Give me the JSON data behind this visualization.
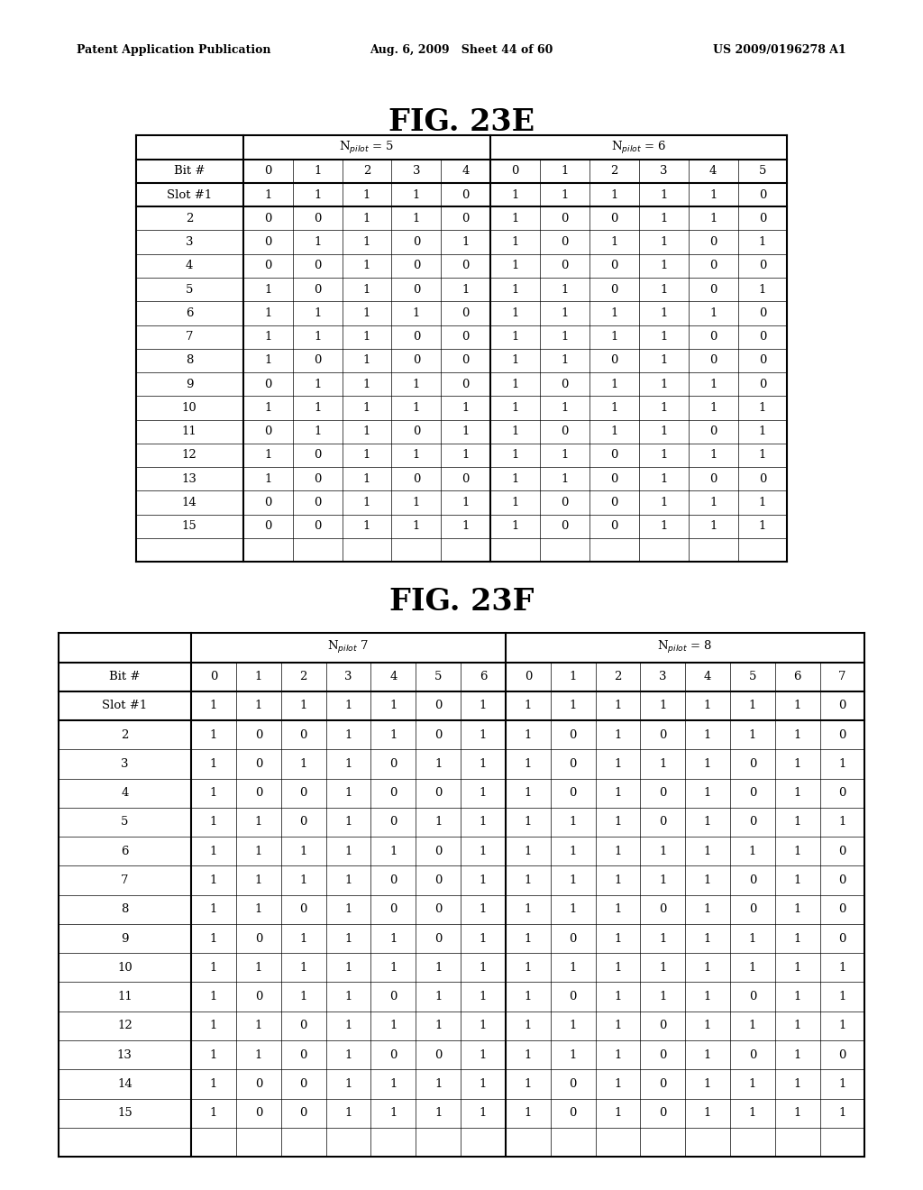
{
  "header_text_left": "Patent Application Publication",
  "header_text_mid": "Aug. 6, 2009   Sheet 44 of 60",
  "header_text_right": "US 2009/0196278 A1",
  "fig23e_title": "FIG. 23E",
  "fig23f_title": "FIG. 23F",
  "fig23e": {
    "npilot5_label": "Nₚᴵₗₒₜ = 5",
    "npilot6_label": "Nₚᴵₗₒₜ = 6",
    "npilot5_bits": [
      0,
      1,
      2,
      3,
      4
    ],
    "npilot6_bits": [
      0,
      1,
      2,
      3,
      4,
      5
    ],
    "npilot5_data": [
      [
        1,
        1,
        1,
        1,
        0
      ],
      [
        0,
        0,
        1,
        1,
        0
      ],
      [
        0,
        1,
        1,
        0,
        1
      ],
      [
        0,
        0,
        1,
        0,
        0
      ],
      [
        1,
        0,
        1,
        0,
        1
      ],
      [
        1,
        1,
        1,
        1,
        0
      ],
      [
        1,
        1,
        1,
        0,
        0
      ],
      [
        1,
        0,
        1,
        0,
        0
      ],
      [
        0,
        1,
        1,
        1,
        0
      ],
      [
        1,
        1,
        1,
        1,
        1
      ],
      [
        0,
        1,
        1,
        0,
        1
      ],
      [
        1,
        0,
        1,
        1,
        1
      ],
      [
        1,
        0,
        1,
        0,
        0
      ],
      [
        0,
        0,
        1,
        1,
        1
      ],
      [
        0,
        0,
        1,
        1,
        1
      ]
    ],
    "npilot6_data": [
      [
        1,
        1,
        1,
        1,
        1,
        0
      ],
      [
        1,
        0,
        0,
        1,
        1,
        0
      ],
      [
        1,
        0,
        1,
        1,
        0,
        1
      ],
      [
        1,
        0,
        0,
        1,
        0,
        0
      ],
      [
        1,
        1,
        0,
        1,
        0,
        1
      ],
      [
        1,
        1,
        1,
        1,
        1,
        0
      ],
      [
        1,
        1,
        1,
        1,
        0,
        0
      ],
      [
        1,
        1,
        0,
        1,
        0,
        0
      ],
      [
        1,
        0,
        1,
        1,
        1,
        0
      ],
      [
        1,
        1,
        1,
        1,
        1,
        1
      ],
      [
        1,
        0,
        1,
        1,
        0,
        1
      ],
      [
        1,
        1,
        0,
        1,
        1,
        1
      ],
      [
        1,
        1,
        0,
        1,
        0,
        0
      ],
      [
        1,
        0,
        0,
        1,
        1,
        1
      ],
      [
        1,
        0,
        0,
        1,
        1,
        1
      ]
    ]
  },
  "fig23f": {
    "npilot7_label": "Nₚᴵₗₒₜ 7",
    "npilot8_label": "Nₚᴵₗₒₜ = 8",
    "npilot7_bits": [
      0,
      1,
      2,
      3,
      4,
      5,
      6
    ],
    "npilot8_bits": [
      0,
      1,
      2,
      3,
      4,
      5,
      6,
      7
    ],
    "npilot7_data": [
      [
        1,
        1,
        1,
        1,
        1,
        0,
        1
      ],
      [
        1,
        0,
        0,
        1,
        1,
        0,
        1
      ],
      [
        1,
        0,
        1,
        1,
        0,
        1,
        1
      ],
      [
        1,
        0,
        0,
        1,
        0,
        0,
        1
      ],
      [
        1,
        1,
        0,
        1,
        0,
        1,
        1
      ],
      [
        1,
        1,
        1,
        1,
        1,
        0,
        1
      ],
      [
        1,
        1,
        1,
        1,
        0,
        0,
        1
      ],
      [
        1,
        1,
        0,
        1,
        0,
        0,
        1
      ],
      [
        1,
        0,
        1,
        1,
        1,
        0,
        1
      ],
      [
        1,
        1,
        1,
        1,
        1,
        1,
        1
      ],
      [
        1,
        0,
        1,
        1,
        0,
        1,
        1
      ],
      [
        1,
        1,
        0,
        1,
        1,
        1,
        1
      ],
      [
        1,
        1,
        0,
        1,
        0,
        0,
        1
      ],
      [
        1,
        0,
        0,
        1,
        1,
        1,
        1
      ],
      [
        1,
        0,
        0,
        1,
        1,
        1,
        1
      ]
    ],
    "npilot8_data": [
      [
        1,
        1,
        1,
        1,
        1,
        1,
        1,
        0
      ],
      [
        1,
        0,
        1,
        0,
        1,
        1,
        1,
        0
      ],
      [
        1,
        0,
        1,
        1,
        1,
        0,
        1,
        1
      ],
      [
        1,
        0,
        1,
        0,
        1,
        0,
        1,
        0
      ],
      [
        1,
        1,
        1,
        0,
        1,
        0,
        1,
        1
      ],
      [
        1,
        1,
        1,
        1,
        1,
        1,
        1,
        0
      ],
      [
        1,
        1,
        1,
        1,
        1,
        0,
        1,
        0
      ],
      [
        1,
        1,
        1,
        0,
        1,
        0,
        1,
        0
      ],
      [
        1,
        0,
        1,
        1,
        1,
        1,
        1,
        0
      ],
      [
        1,
        1,
        1,
        1,
        1,
        1,
        1,
        1
      ],
      [
        1,
        0,
        1,
        1,
        1,
        0,
        1,
        1
      ],
      [
        1,
        1,
        1,
        0,
        1,
        1,
        1,
        1
      ],
      [
        1,
        1,
        1,
        0,
        1,
        0,
        1,
        0
      ],
      [
        1,
        0,
        1,
        0,
        1,
        1,
        1,
        1
      ],
      [
        1,
        0,
        1,
        0,
        1,
        1,
        1,
        1
      ]
    ]
  }
}
